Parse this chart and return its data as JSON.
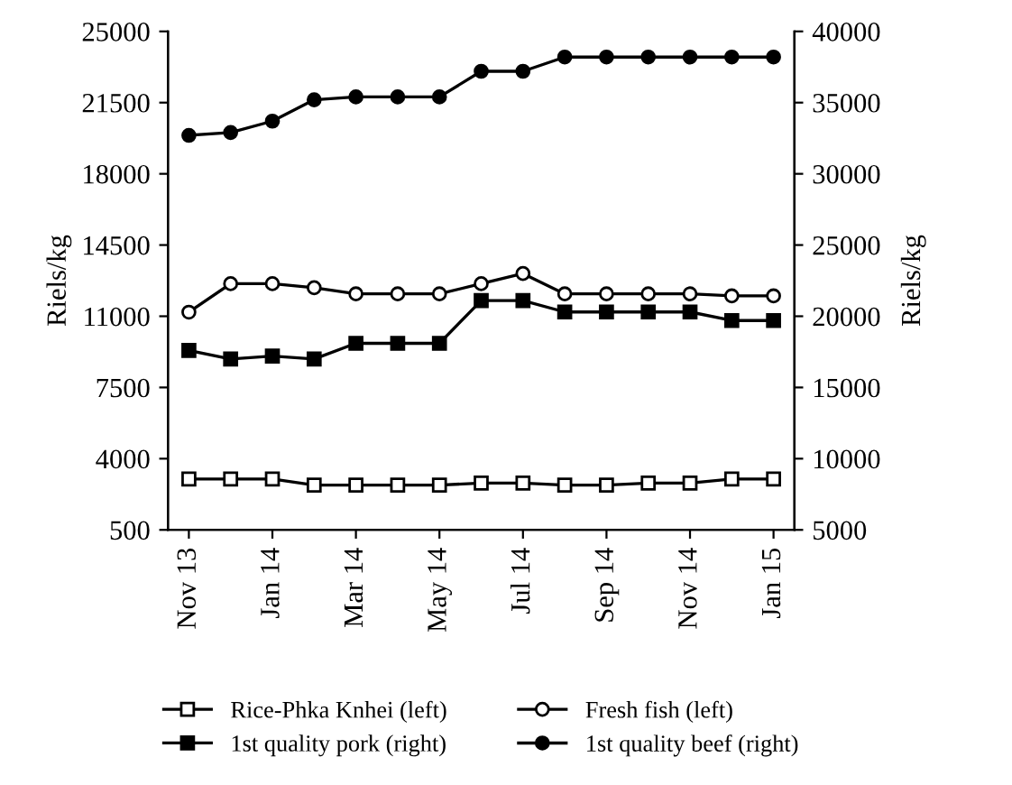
{
  "chart_data": {
    "type": "line",
    "ylabel": "Riels/kg",
    "y2label": "Riels/kg",
    "categories": [
      "Nov 13",
      null,
      "Jan 14",
      null,
      "Mar 14",
      null,
      "May 14",
      null,
      "Jul 14",
      null,
      "Sep 14",
      null,
      "Nov 14",
      null,
      "Jan 15"
    ],
    "ylim": [
      500,
      25000
    ],
    "yticks": [
      500,
      4000,
      7500,
      11000,
      14500,
      18000,
      21500,
      25000
    ],
    "y2lim": [
      5000,
      40000
    ],
    "y2ticks": [
      5000,
      10000,
      15000,
      20000,
      25000,
      30000,
      35000,
      40000
    ],
    "legend": "bottom",
    "series": [
      {
        "name": "Rice-Phka Knhei (left)",
        "color": "#000000",
        "marker": "square",
        "axis": "y",
        "values": [
          3000,
          3000,
          3000,
          2700,
          2700,
          2700,
          2700,
          2800,
          2800,
          2700,
          2700,
          2800,
          2800,
          3000,
          3000
        ]
      },
      {
        "name": "Fresh fish (left)",
        "color": "#000000",
        "marker": "circle",
        "axis": "y",
        "values": [
          11200,
          12600,
          12600,
          12400,
          12100,
          12100,
          12100,
          12600,
          13100,
          12100,
          12100,
          12100,
          12100,
          12000,
          12000
        ]
      },
      {
        "name": "1st quality pork (right)",
        "color": "#000000",
        "marker": "square",
        "axis": "y2",
        "values": [
          17600,
          17000,
          17200,
          17000,
          18100,
          18100,
          18100,
          21100,
          21100,
          20300,
          20300,
          20300,
          20300,
          19700,
          19700
        ]
      },
      {
        "name": "1st quality beef (right)",
        "color": "#000000",
        "marker": "circle",
        "axis": "y2",
        "values": [
          32700,
          32900,
          33700,
          35200,
          35400,
          35400,
          35400,
          37200,
          37200,
          38200,
          38200,
          38200,
          38200,
          38200,
          38200
        ]
      }
    ]
  }
}
